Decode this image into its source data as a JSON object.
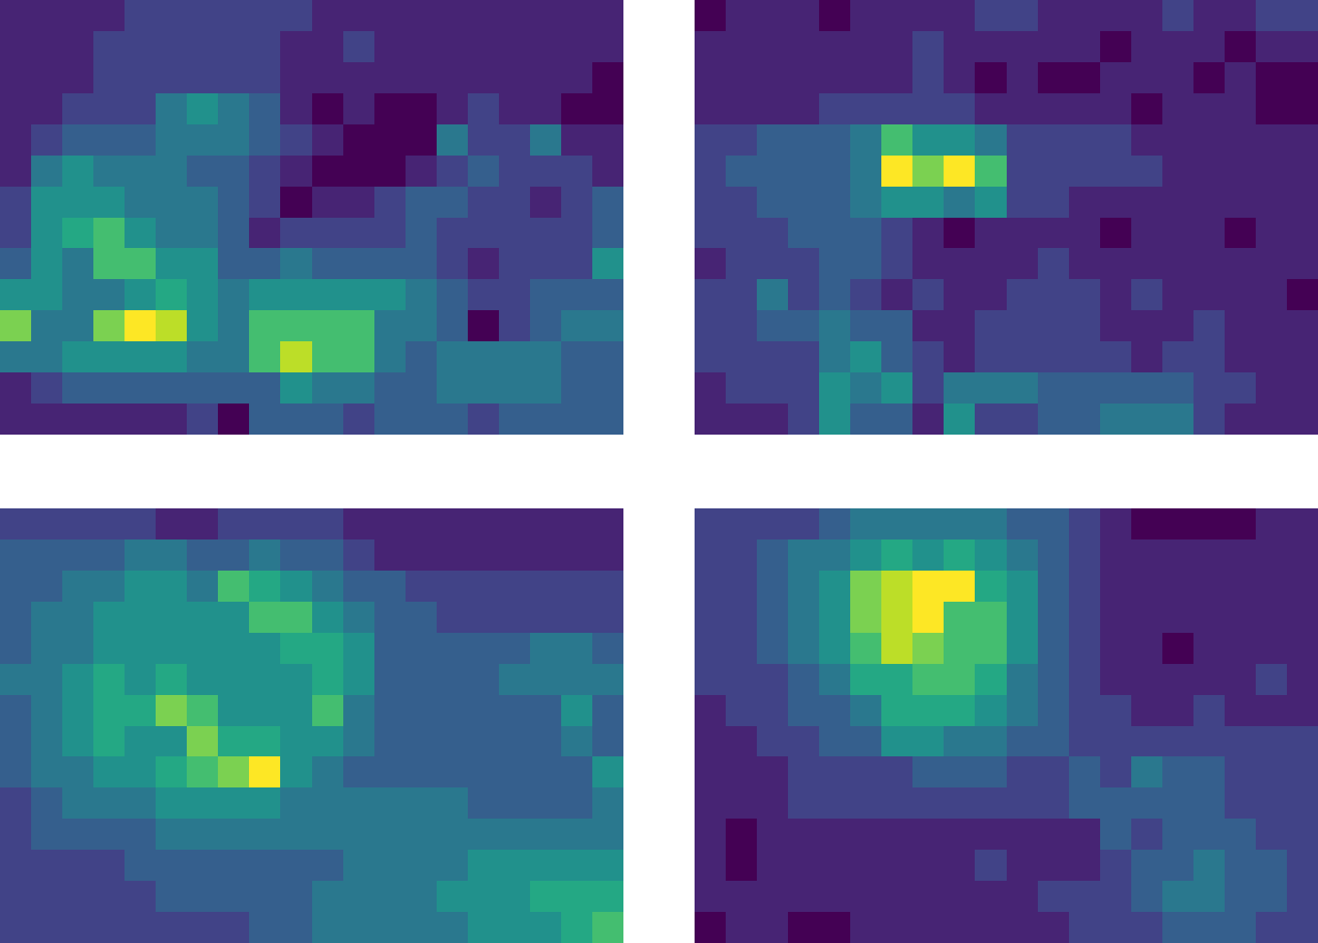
{
  "chart_data": [
    {
      "type": "heatmap",
      "color": "Viridis",
      "zlim": [
        0,
        10
      ],
      "tick_labels": false,
      "cells": [
        [
          1,
          1,
          1,
          1,
          2,
          2,
          2,
          2,
          2,
          2,
          1,
          1,
          1,
          1,
          1,
          1,
          1,
          1,
          1,
          1
        ],
        [
          1,
          1,
          1,
          2,
          2,
          2,
          2,
          2,
          2,
          1,
          1,
          2,
          1,
          1,
          1,
          1,
          1,
          1,
          1,
          1
        ],
        [
          1,
          1,
          1,
          2,
          2,
          2,
          2,
          2,
          2,
          1,
          1,
          1,
          1,
          1,
          1,
          1,
          1,
          1,
          1,
          0
        ],
        [
          1,
          1,
          2,
          2,
          2,
          4,
          5,
          4,
          3,
          1,
          0,
          1,
          0,
          0,
          1,
          2,
          1,
          1,
          0,
          0
        ],
        [
          1,
          2,
          3,
          3,
          3,
          4,
          4,
          4,
          3,
          2,
          1,
          0,
          0,
          0,
          4,
          2,
          2,
          4,
          1,
          1
        ],
        [
          1,
          4,
          5,
          4,
          4,
          4,
          3,
          3,
          2,
          1,
          0,
          0,
          0,
          1,
          2,
          3,
          2,
          2,
          2,
          1
        ],
        [
          2,
          5,
          5,
          5,
          4,
          4,
          4,
          3,
          2,
          0,
          1,
          1,
          2,
          3,
          3,
          2,
          2,
          1,
          2,
          3
        ],
        [
          2,
          5,
          6,
          7,
          5,
          4,
          4,
          3,
          1,
          2,
          2,
          2,
          2,
          3,
          2,
          2,
          2,
          2,
          2,
          3
        ],
        [
          3,
          5,
          4,
          7,
          7,
          5,
          5,
          3,
          3,
          4,
          3,
          3,
          3,
          3,
          2,
          1,
          2,
          2,
          2,
          5
        ],
        [
          5,
          5,
          4,
          4,
          5,
          6,
          5,
          4,
          5,
          5,
          5,
          5,
          5,
          4,
          3,
          2,
          2,
          3,
          3,
          3
        ],
        [
          8,
          4,
          4,
          8,
          10,
          9,
          5,
          4,
          7,
          7,
          7,
          7,
          4,
          4,
          3,
          0,
          2,
          3,
          4,
          4
        ],
        [
          4,
          4,
          5,
          5,
          5,
          5,
          4,
          4,
          7,
          9,
          7,
          7,
          4,
          3,
          4,
          4,
          4,
          4,
          3,
          3
        ],
        [
          1,
          2,
          3,
          3,
          3,
          3,
          3,
          3,
          3,
          5,
          4,
          4,
          3,
          3,
          4,
          4,
          4,
          4,
          3,
          3
        ],
        [
          1,
          1,
          1,
          1,
          1,
          1,
          2,
          0,
          3,
          3,
          3,
          2,
          3,
          3,
          3,
          2,
          3,
          3,
          3,
          3
        ]
      ]
    },
    {
      "type": "heatmap",
      "color": "Viridis",
      "zlim": [
        0,
        10
      ],
      "tick_labels": false,
      "cells": [
        [
          0,
          1,
          1,
          1,
          0,
          1,
          1,
          1,
          1,
          2,
          2,
          1,
          1,
          1,
          1,
          2,
          1,
          1,
          2,
          2
        ],
        [
          1,
          1,
          1,
          1,
          1,
          1,
          1,
          2,
          1,
          1,
          1,
          1,
          1,
          0,
          1,
          1,
          1,
          0,
          1,
          1
        ],
        [
          1,
          1,
          1,
          1,
          1,
          1,
          1,
          2,
          1,
          0,
          1,
          0,
          0,
          1,
          1,
          1,
          0,
          1,
          0,
          0
        ],
        [
          1,
          1,
          1,
          1,
          2,
          2,
          2,
          2,
          2,
          1,
          1,
          1,
          1,
          1,
          0,
          1,
          1,
          1,
          0,
          0
        ],
        [
          2,
          2,
          3,
          3,
          3,
          4,
          7,
          5,
          5,
          4,
          2,
          2,
          2,
          2,
          1,
          1,
          1,
          1,
          1,
          1
        ],
        [
          2,
          3,
          3,
          3,
          3,
          4,
          10,
          8,
          10,
          7,
          2,
          2,
          2,
          2,
          2,
          1,
          1,
          1,
          1,
          1
        ],
        [
          2,
          2,
          3,
          3,
          3,
          4,
          5,
          5,
          4,
          5,
          2,
          2,
          1,
          1,
          1,
          1,
          1,
          1,
          1,
          1
        ],
        [
          2,
          2,
          2,
          3,
          3,
          3,
          2,
          1,
          0,
          1,
          1,
          1,
          1,
          0,
          1,
          1,
          1,
          0,
          1,
          1
        ],
        [
          1,
          2,
          2,
          2,
          3,
          3,
          2,
          1,
          1,
          1,
          1,
          2,
          1,
          1,
          1,
          1,
          1,
          1,
          1,
          1
        ],
        [
          2,
          2,
          4,
          2,
          3,
          2,
          1,
          2,
          1,
          1,
          2,
          2,
          2,
          1,
          2,
          1,
          1,
          1,
          1,
          0
        ],
        [
          2,
          2,
          3,
          3,
          4,
          3,
          3,
          1,
          1,
          2,
          2,
          2,
          2,
          1,
          1,
          1,
          2,
          1,
          1,
          1
        ],
        [
          2,
          2,
          2,
          2,
          4,
          5,
          3,
          2,
          1,
          2,
          2,
          2,
          2,
          2,
          1,
          2,
          2,
          1,
          1,
          1
        ],
        [
          1,
          2,
          2,
          2,
          5,
          4,
          5,
          2,
          4,
          4,
          4,
          3,
          3,
          3,
          3,
          3,
          2,
          2,
          1,
          1
        ],
        [
          1,
          1,
          1,
          2,
          5,
          3,
          3,
          1,
          5,
          2,
          2,
          3,
          3,
          4,
          4,
          4,
          2,
          1,
          1,
          1
        ]
      ]
    },
    {
      "type": "heatmap",
      "color": "Viridis",
      "zlim": [
        0,
        10
      ],
      "tick_labels": false,
      "cells": [
        [
          2,
          2,
          2,
          2,
          2,
          1,
          1,
          2,
          2,
          2,
          2,
          1,
          1,
          1,
          1,
          1,
          1,
          1,
          1,
          1
        ],
        [
          3,
          3,
          3,
          3,
          4,
          4,
          3,
          3,
          4,
          3,
          3,
          2,
          1,
          1,
          1,
          1,
          1,
          1,
          1,
          1
        ],
        [
          3,
          3,
          4,
          4,
          5,
          5,
          4,
          7,
          6,
          5,
          4,
          3,
          3,
          2,
          2,
          2,
          2,
          2,
          2,
          2
        ],
        [
          3,
          4,
          4,
          5,
          5,
          5,
          5,
          5,
          7,
          7,
          5,
          4,
          3,
          3,
          2,
          2,
          2,
          2,
          2,
          2
        ],
        [
          3,
          4,
          4,
          5,
          5,
          5,
          5,
          5,
          5,
          6,
          6,
          5,
          3,
          3,
          3,
          3,
          3,
          4,
          4,
          3
        ],
        [
          4,
          4,
          5,
          6,
          5,
          6,
          5,
          5,
          5,
          5,
          6,
          5,
          3,
          3,
          3,
          3,
          4,
          4,
          4,
          4
        ],
        [
          3,
          4,
          5,
          6,
          6,
          8,
          7,
          5,
          5,
          5,
          7,
          4,
          3,
          3,
          3,
          3,
          3,
          3,
          5,
          3
        ],
        [
          3,
          4,
          5,
          6,
          5,
          5,
          8,
          6,
          6,
          5,
          5,
          4,
          3,
          3,
          3,
          3,
          3,
          3,
          4,
          3
        ],
        [
          3,
          4,
          4,
          5,
          5,
          6,
          7,
          8,
          10,
          5,
          4,
          3,
          3,
          3,
          3,
          3,
          3,
          3,
          3,
          5
        ],
        [
          2,
          3,
          4,
          4,
          4,
          5,
          5,
          5,
          5,
          4,
          4,
          4,
          4,
          4,
          4,
          3,
          3,
          3,
          3,
          4
        ],
        [
          2,
          3,
          3,
          3,
          3,
          4,
          4,
          4,
          4,
          4,
          4,
          4,
          4,
          4,
          4,
          4,
          4,
          4,
          4,
          4
        ],
        [
          2,
          2,
          2,
          2,
          3,
          3,
          3,
          3,
          3,
          3,
          3,
          4,
          4,
          4,
          4,
          5,
          5,
          5,
          5,
          5
        ],
        [
          2,
          2,
          2,
          2,
          2,
          3,
          3,
          3,
          3,
          3,
          4,
          4,
          4,
          4,
          5,
          5,
          5,
          6,
          6,
          6
        ],
        [
          2,
          2,
          2,
          2,
          2,
          2,
          2,
          2,
          3,
          3,
          4,
          4,
          4,
          4,
          4,
          5,
          5,
          5,
          6,
          7
        ]
      ]
    },
    {
      "type": "heatmap",
      "color": "Viridis",
      "zlim": [
        0,
        10
      ],
      "tick_labels": false,
      "cells": [
        [
          2,
          2,
          2,
          2,
          3,
          4,
          4,
          4,
          4,
          4,
          3,
          3,
          2,
          1,
          0,
          0,
          0,
          0,
          1,
          1
        ],
        [
          2,
          2,
          3,
          4,
          4,
          5,
          6,
          5,
          6,
          5,
          4,
          3,
          2,
          1,
          1,
          1,
          1,
          1,
          1,
          1
        ],
        [
          2,
          2,
          3,
          4,
          5,
          8,
          9,
          10,
          10,
          6,
          5,
          3,
          2,
          1,
          1,
          1,
          1,
          1,
          1,
          1
        ],
        [
          2,
          2,
          3,
          4,
          5,
          8,
          9,
          10,
          7,
          7,
          5,
          3,
          2,
          1,
          1,
          1,
          1,
          1,
          1,
          1
        ],
        [
          2,
          2,
          3,
          4,
          5,
          7,
          9,
          8,
          7,
          7,
          5,
          3,
          2,
          1,
          1,
          0,
          1,
          1,
          1,
          1
        ],
        [
          2,
          2,
          2,
          3,
          4,
          6,
          6,
          7,
          7,
          6,
          4,
          3,
          2,
          1,
          1,
          1,
          1,
          1,
          2,
          1
        ],
        [
          1,
          2,
          2,
          3,
          3,
          4,
          6,
          6,
          6,
          5,
          4,
          3,
          2,
          2,
          1,
          1,
          2,
          1,
          1,
          1
        ],
        [
          1,
          1,
          2,
          2,
          3,
          3,
          5,
          5,
          4,
          4,
          3,
          3,
          2,
          2,
          2,
          2,
          2,
          2,
          2,
          2
        ],
        [
          1,
          1,
          1,
          2,
          2,
          2,
          2,
          3,
          3,
          3,
          2,
          2,
          3,
          2,
          4,
          3,
          3,
          2,
          2,
          2
        ],
        [
          1,
          1,
          1,
          2,
          2,
          2,
          2,
          2,
          2,
          2,
          2,
          2,
          3,
          3,
          3,
          3,
          3,
          2,
          2,
          2
        ],
        [
          1,
          0,
          1,
          1,
          1,
          1,
          1,
          1,
          1,
          1,
          1,
          1,
          1,
          3,
          2,
          3,
          3,
          3,
          2,
          2
        ],
        [
          1,
          0,
          1,
          1,
          1,
          1,
          1,
          1,
          1,
          2,
          1,
          1,
          1,
          2,
          3,
          3,
          4,
          3,
          3,
          2
        ],
        [
          1,
          1,
          1,
          1,
          1,
          1,
          1,
          1,
          1,
          1,
          1,
          2,
          2,
          2,
          3,
          4,
          4,
          3,
          3,
          2
        ],
        [
          0,
          1,
          1,
          0,
          0,
          1,
          1,
          1,
          1,
          1,
          1,
          1,
          2,
          2,
          2,
          3,
          3,
          3,
          2,
          2
        ]
      ]
    }
  ]
}
